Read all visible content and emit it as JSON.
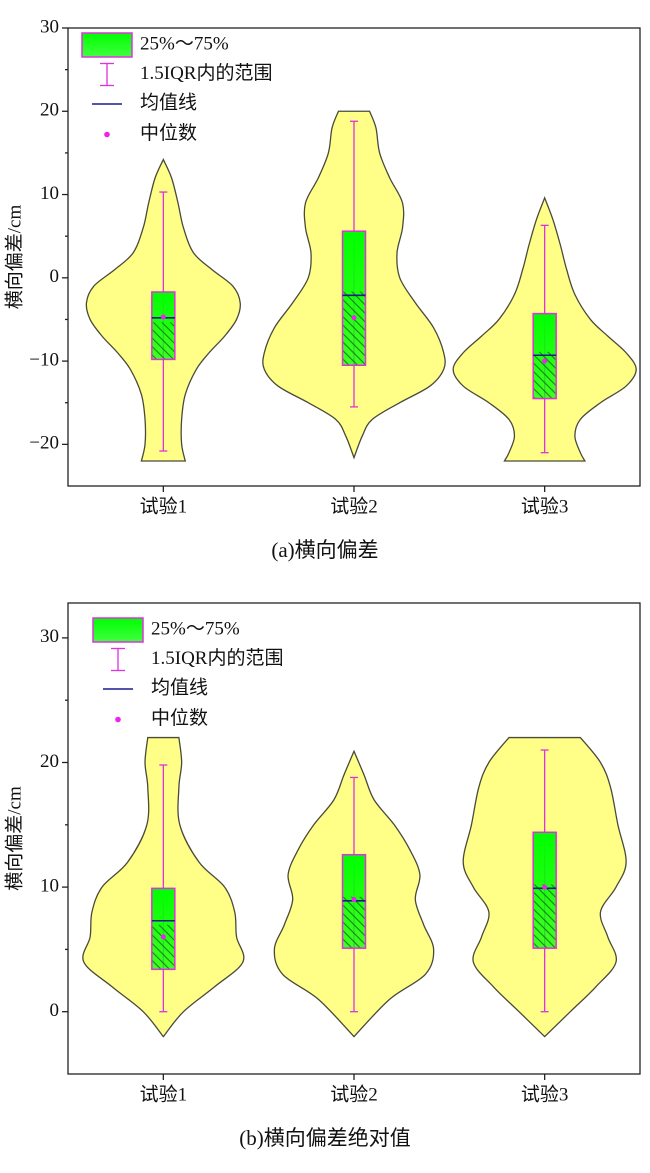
{
  "chart_data": [
    {
      "type": "violin",
      "caption": "(a)横向偏差",
      "ylabel": "横向偏差/cm",
      "categories": [
        "试验1",
        "试验2",
        "试验3"
      ],
      "ylim": [
        -25,
        30
      ],
      "yticks": [
        {
          "value": -20,
          "label": "−20"
        },
        {
          "value": -10,
          "label": "−10"
        },
        0,
        10,
        20,
        30
      ],
      "legend": {
        "box": "25%～75%",
        "whisker": "1.5IQR内的范围",
        "mean": "均值线",
        "median": "中位数"
      },
      "colors": {
        "violin": "#ffff88",
        "box": "#00ff00",
        "whisker": "#e030e0",
        "mean": "#1a1a8c",
        "median": "#ee22ee"
      },
      "q1": [
        -9.8,
        -10.5,
        -14.5
      ],
      "q3": [
        -1.7,
        5.6,
        -4.3
      ],
      "whisker_low": [
        -20.8,
        -15.5,
        -21
      ],
      "whisker_high": [
        10.3,
        18.8,
        6.3
      ],
      "mean": [
        -4.8,
        -2.1,
        -9.3
      ],
      "median": [
        -4.7,
        -4.8,
        -10
      ],
      "violins": [
        {
          "y": [
            14.2,
            12,
            9,
            6,
            3,
            1,
            -1,
            -3,
            -5,
            -7,
            -9,
            -11,
            -14,
            -17,
            -20,
            -22
          ],
          "density": [
            0,
            0.09,
            0.16,
            0.22,
            0.33,
            0.53,
            0.76,
            0.84,
            0.8,
            0.67,
            0.5,
            0.36,
            0.24,
            0.2,
            0.2,
            0.24
          ]
        },
        {
          "y": [
            20,
            18,
            15,
            12,
            9,
            6,
            3,
            0,
            -3,
            -6,
            -9,
            -11,
            -13,
            -15,
            -17,
            -19,
            -21.6
          ],
          "density": [
            0.17,
            0.24,
            0.28,
            0.39,
            0.53,
            0.53,
            0.47,
            0.5,
            0.67,
            0.87,
            0.98,
            0.98,
            0.83,
            0.5,
            0.2,
            0.09,
            0
          ]
        },
        {
          "y": [
            9.6,
            7,
            4,
            1,
            -2,
            -5,
            -7,
            -9,
            -11,
            -13,
            -15,
            -17,
            -19,
            -21,
            -22
          ],
          "density": [
            0,
            0.09,
            0.17,
            0.24,
            0.33,
            0.5,
            0.69,
            0.89,
            1,
            0.89,
            0.61,
            0.39,
            0.33,
            0.39,
            0.44
          ]
        }
      ]
    },
    {
      "type": "violin",
      "caption": "(b)横向偏差绝对值",
      "ylabel": "横向偏差/cm",
      "categories": [
        "试验1",
        "试验2",
        "试验3"
      ],
      "ylim": [
        -5,
        32.8
      ],
      "yticks": [
        0,
        10,
        20,
        30
      ],
      "legend": {
        "box": "25%～75%",
        "whisker": "1.5IQR内的范围",
        "mean": "均值线",
        "median": "中位数"
      },
      "colors": {
        "violin": "#ffff88",
        "box": "#00ff00",
        "whisker": "#e030e0",
        "mean": "#1a1a8c",
        "median": "#ee22ee"
      },
      "q1": [
        3.4,
        5.1,
        5.1
      ],
      "q3": [
        9.9,
        12.6,
        14.4
      ],
      "whisker_low": [
        0,
        0,
        0
      ],
      "whisker_high": [
        19.8,
        18.8,
        21
      ],
      "mean": [
        7.3,
        8.9,
        9.9
      ],
      "median": [
        6,
        9,
        10
      ],
      "violins": [
        {
          "y": [
            22,
            20,
            18,
            15,
            12,
            10,
            8,
            6,
            4,
            2,
            0,
            -2
          ],
          "density": [
            0.17,
            0.2,
            0.17,
            0.18,
            0.39,
            0.67,
            0.78,
            0.8,
            0.87,
            0.56,
            0.22,
            0
          ]
        },
        {
          "y": [
            20.9,
            19,
            17,
            15,
            13,
            11,
            9,
            7,
            5,
            3,
            1,
            -2
          ],
          "density": [
            0,
            0.11,
            0.22,
            0.44,
            0.61,
            0.72,
            0.67,
            0.76,
            0.87,
            0.78,
            0.39,
            0
          ]
        },
        {
          "y": [
            22,
            20,
            18,
            15,
            12,
            10,
            8,
            6,
            4,
            2,
            0,
            -2
          ],
          "density": [
            0.39,
            0.61,
            0.72,
            0.8,
            0.89,
            0.78,
            0.61,
            0.69,
            0.78,
            0.56,
            0.28,
            0
          ]
        }
      ]
    }
  ]
}
